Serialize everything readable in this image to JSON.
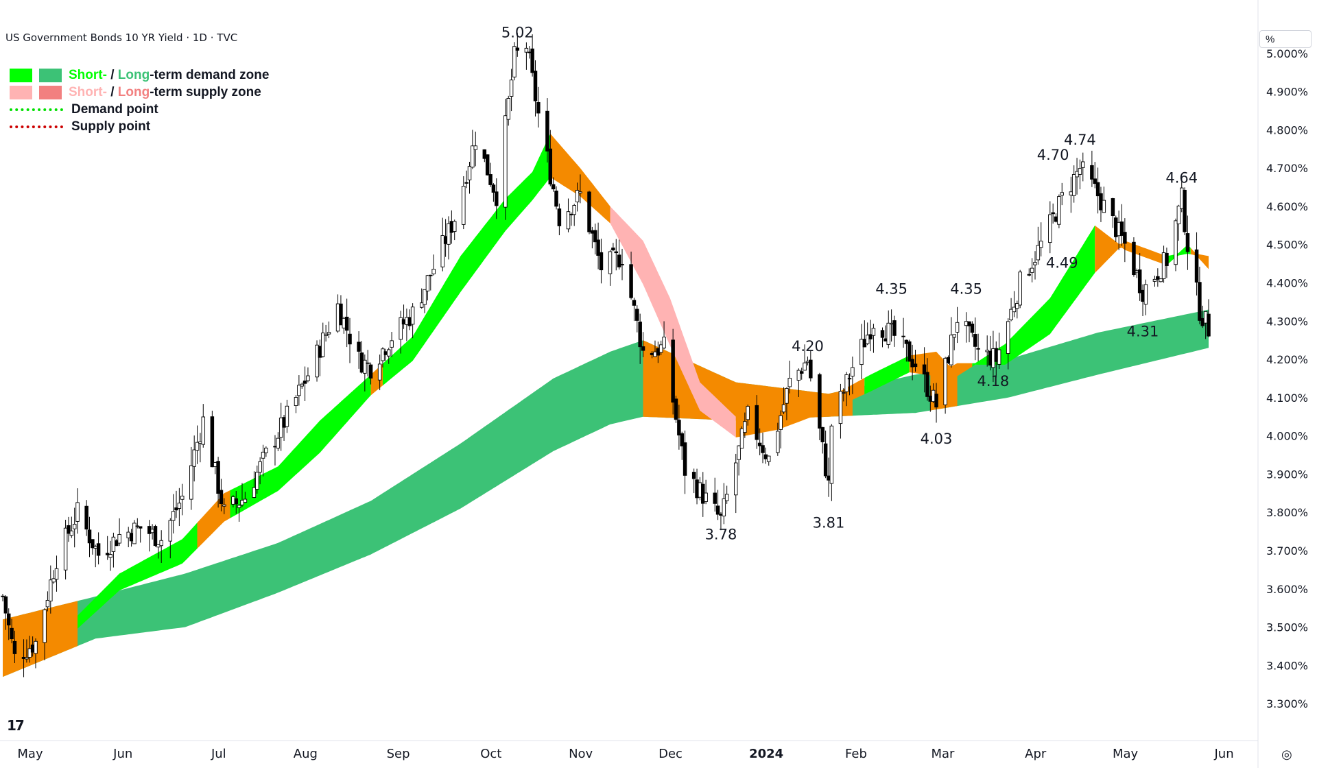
{
  "title": "US Government Bonds 10 YR Yield · 1D · TVC",
  "axis_unit": "%",
  "legend": {
    "demand": {
      "short": "Short-",
      "sep": " / ",
      "long": "Long",
      "rest": "-term demand zone"
    },
    "supply": {
      "short": "Short-",
      "sep": " / ",
      "long": "Long",
      "rest": "-term supply zone"
    },
    "demand_point": "Demand point",
    "supply_point": "Supply point"
  },
  "icons": {
    "logo": "tradingview-logo-icon",
    "settings": "settings-icon"
  },
  "colors": {
    "short_demand": "#00ff00",
    "long_demand": "#3cc276",
    "short_supply": "#ffb3b3",
    "long_supply": "#f28080",
    "transition_zone": "#f48a00",
    "demand_point": "#00e000",
    "supply_point": "#cc0000",
    "candle_up": "#ffffff",
    "candle_down": "#000000"
  },
  "chart_data": {
    "type": "candlestick",
    "y_unit": "%",
    "ylim": [
      3.25,
      5.1
    ],
    "y_ticks": [
      "5.000%",
      "4.900%",
      "4.800%",
      "4.700%",
      "4.600%",
      "4.500%",
      "4.400%",
      "4.300%",
      "4.200%",
      "4.100%",
      "4.000%",
      "3.900%",
      "3.800%",
      "3.700%",
      "3.600%",
      "3.500%",
      "3.400%",
      "3.300%"
    ],
    "x_ticks": [
      "May",
      "Jun",
      "Jul",
      "Aug",
      "Sep",
      "Oct",
      "Nov",
      "Dec",
      "2024",
      "Feb",
      "Mar",
      "Apr",
      "May",
      "Jun"
    ],
    "price_path": [
      [
        "2023-05-01",
        3.58
      ],
      [
        "2023-05-05",
        3.42
      ],
      [
        "2023-05-12",
        3.46
      ],
      [
        "2023-05-19",
        3.68
      ],
      [
        "2023-05-26",
        3.8
      ],
      [
        "2023-06-02",
        3.69
      ],
      [
        "2023-06-09",
        3.74
      ],
      [
        "2023-06-16",
        3.76
      ],
      [
        "2023-06-23",
        3.73
      ],
      [
        "2023-06-30",
        3.84
      ],
      [
        "2023-07-07",
        4.04
      ],
      [
        "2023-07-14",
        3.8
      ],
      [
        "2023-07-21",
        3.84
      ],
      [
        "2023-07-28",
        3.95
      ],
      [
        "2023-08-04",
        4.05
      ],
      [
        "2023-08-11",
        4.16
      ],
      [
        "2023-08-21",
        4.34
      ],
      [
        "2023-08-28",
        4.2
      ],
      [
        "2023-09-01",
        4.18
      ],
      [
        "2023-09-08",
        4.26
      ],
      [
        "2023-09-15",
        4.32
      ],
      [
        "2023-09-22",
        4.44
      ],
      [
        "2023-09-29",
        4.57
      ],
      [
        "2023-10-06",
        4.78
      ],
      [
        "2023-10-13",
        4.63
      ],
      [
        "2023-10-19",
        4.99
      ],
      [
        "2023-10-23",
        5.02
      ],
      [
        "2023-10-27",
        4.84
      ],
      [
        "2023-11-03",
        4.57
      ],
      [
        "2023-11-10",
        4.63
      ],
      [
        "2023-11-17",
        4.44
      ],
      [
        "2023-11-24",
        4.47
      ],
      [
        "2023-12-01",
        4.22
      ],
      [
        "2023-12-08",
        4.23
      ],
      [
        "2023-12-15",
        3.91
      ],
      [
        "2023-12-27",
        3.78
      ],
      [
        "2024-01-05",
        4.05
      ],
      [
        "2024-01-12",
        3.94
      ],
      [
        "2024-01-19",
        4.14
      ],
      [
        "2024-01-25",
        4.2
      ],
      [
        "2024-02-01",
        3.87
      ],
      [
        "2024-02-02",
        4.03
      ],
      [
        "2024-02-09",
        4.18
      ],
      [
        "2024-02-16",
        4.3
      ],
      [
        "2024-02-23",
        4.26
      ],
      [
        "2024-03-01",
        4.19
      ],
      [
        "2024-03-08",
        4.08
      ],
      [
        "2024-03-15",
        4.31
      ],
      [
        "2024-03-22",
        4.22
      ],
      [
        "2024-03-28",
        4.2
      ],
      [
        "2024-04-05",
        4.4
      ],
      [
        "2024-04-12",
        4.5
      ],
      [
        "2024-04-19",
        4.62
      ],
      [
        "2024-04-25",
        4.7
      ],
      [
        "2024-05-01",
        4.63
      ],
      [
        "2024-05-10",
        4.5
      ],
      [
        "2024-05-16",
        4.38
      ],
      [
        "2024-05-24",
        4.46
      ],
      [
        "2024-05-29",
        4.62
      ],
      [
        "2024-05-31",
        4.5
      ],
      [
        "2024-06-04",
        4.33
      ],
      [
        "2024-06-07",
        4.28
      ]
    ],
    "short_term_zone": [
      [
        "2023-05-01",
        3.52,
        3.54
      ],
      [
        "2023-05-26",
        3.5,
        3.53
      ],
      [
        "2023-06-09",
        3.6,
        3.64
      ],
      [
        "2023-06-30",
        3.67,
        3.73
      ],
      [
        "2023-07-14",
        3.78,
        3.85
      ],
      [
        "2023-08-01",
        3.86,
        3.92
      ],
      [
        "2023-08-15",
        3.96,
        4.04
      ],
      [
        "2023-09-01",
        4.11,
        4.16
      ],
      [
        "2023-09-15",
        4.2,
        4.26
      ],
      [
        "2023-10-01",
        4.38,
        4.47
      ],
      [
        "2023-10-16",
        4.54,
        4.62
      ],
      [
        "2023-10-25",
        4.62,
        4.69
      ],
      [
        "2023-10-31",
        4.68,
        4.79
      ],
      [
        "2023-11-10",
        4.63,
        4.7
      ],
      [
        "2023-11-20",
        4.56,
        4.6
      ],
      [
        "2023-12-01",
        4.4,
        4.51
      ],
      [
        "2023-12-10",
        4.24,
        4.36
      ],
      [
        "2023-12-20",
        4.07,
        4.14
      ],
      [
        "2024-01-01",
        4.0,
        4.05
      ],
      [
        "2024-01-15",
        4.02,
        4.08
      ],
      [
        "2024-02-01",
        4.07,
        4.1
      ],
      [
        "2024-02-15",
        4.12,
        4.16
      ],
      [
        "2024-02-28",
        4.17,
        4.21
      ],
      [
        "2024-03-08",
        4.16,
        4.22
      ],
      [
        "2024-03-15",
        4.19,
        4.16
      ],
      [
        "2024-03-31",
        4.19,
        4.24
      ],
      [
        "2024-04-15",
        4.27,
        4.36
      ],
      [
        "2024-04-30",
        4.43,
        4.55
      ],
      [
        "2024-05-10",
        4.51,
        4.49
      ],
      [
        "2024-05-24",
        4.47,
        4.45
      ],
      [
        "2024-05-31",
        4.48,
        4.5
      ],
      [
        "2024-06-07",
        4.47,
        4.44
      ]
    ],
    "long_term_zone": [
      [
        "2023-05-01",
        3.37,
        3.52
      ],
      [
        "2023-06-01",
        3.47,
        3.58
      ],
      [
        "2023-07-01",
        3.5,
        3.64
      ],
      [
        "2023-08-01",
        3.59,
        3.72
      ],
      [
        "2023-09-01",
        3.69,
        3.83
      ],
      [
        "2023-10-01",
        3.81,
        3.98
      ],
      [
        "2023-11-01",
        3.96,
        4.15
      ],
      [
        "2023-11-20",
        4.03,
        4.22
      ],
      [
        "2023-12-01",
        4.05,
        4.25
      ],
      [
        "2024-01-01",
        4.04,
        4.14
      ],
      [
        "2024-02-01",
        4.05,
        4.11
      ],
      [
        "2024-03-01",
        4.06,
        4.16
      ],
      [
        "2024-04-01",
        4.1,
        4.2
      ],
      [
        "2024-05-01",
        4.16,
        4.27
      ],
      [
        "2024-06-07",
        4.23,
        4.33
      ]
    ],
    "annotations": [
      {
        "date": "2023-10-20",
        "value": 5.02,
        "label": "5.02",
        "position": "above"
      },
      {
        "date": "2023-12-27",
        "value": 3.78,
        "label": "3.78",
        "position": "below"
      },
      {
        "date": "2024-01-25",
        "value": 4.2,
        "label": "4.20",
        "position": "above"
      },
      {
        "date": "2024-02-01",
        "value": 3.81,
        "label": "3.81",
        "position": "below"
      },
      {
        "date": "2024-02-22",
        "value": 4.35,
        "label": "4.35",
        "position": "above"
      },
      {
        "date": "2024-03-08",
        "value": 4.03,
        "label": "4.03",
        "position": "below"
      },
      {
        "date": "2024-03-18",
        "value": 4.35,
        "label": "4.35",
        "position": "above"
      },
      {
        "date": "2024-03-27",
        "value": 4.18,
        "label": "4.18",
        "position": "below"
      },
      {
        "date": "2024-04-16",
        "value": 4.7,
        "label": "4.70",
        "position": "above"
      },
      {
        "date": "2024-04-25",
        "value": 4.74,
        "label": "4.74",
        "position": "above"
      },
      {
        "date": "2024-04-19",
        "value": 4.49,
        "label": "4.49",
        "position": "below"
      },
      {
        "date": "2024-05-16",
        "value": 4.31,
        "label": "4.31",
        "position": "below"
      },
      {
        "date": "2024-05-29",
        "value": 4.64,
        "label": "4.64",
        "position": "above"
      }
    ],
    "grid": false,
    "legend_position": "top-left"
  }
}
